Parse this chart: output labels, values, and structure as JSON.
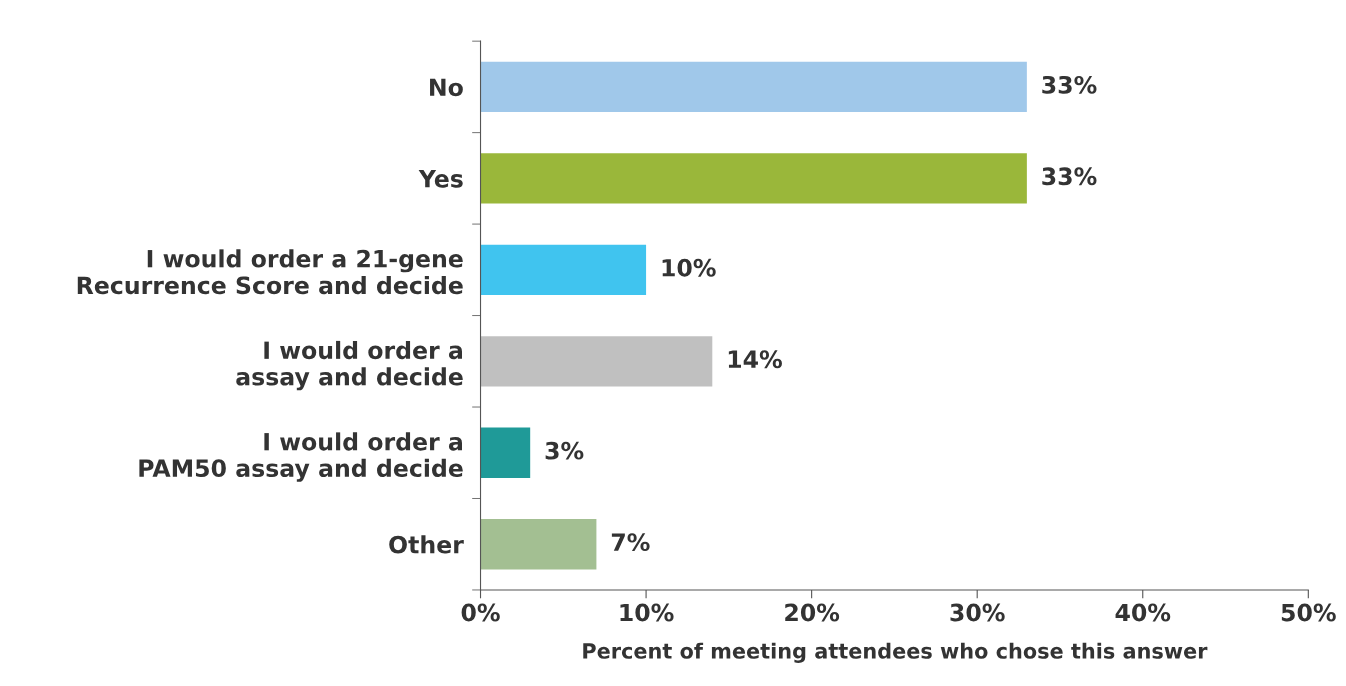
{
  "chart_data": {
    "type": "bar",
    "orientation": "horizontal",
    "xlabel": "Percent of meeting attendees who chose this answer",
    "categories": [
      "No",
      "Yes",
      "I would order a 21-gene\nRecurrence Score and decide",
      "I would order a\nassay and decide",
      "I would order a\nPAM50 assay and decide",
      "Other"
    ],
    "values": [
      33,
      33,
      10,
      14,
      3,
      7
    ],
    "colors": [
      "#a0c8ea",
      "#9ab73a",
      "#40c4ef",
      "#c0c0c0",
      "#1f9a98",
      "#a3bf92"
    ],
    "value_labels": [
      "33%",
      "33%",
      "10%",
      "14%",
      "3%",
      "7%"
    ],
    "xlim": [
      0,
      50
    ],
    "xticks": [
      {
        "value": 0,
        "label": "0%"
      },
      {
        "value": 10,
        "label": "10%"
      },
      {
        "value": 20,
        "label": "20%"
      },
      {
        "value": 30,
        "label": "30%"
      },
      {
        "value": 40,
        "label": "40%"
      },
      {
        "value": 50,
        "label": "50%"
      }
    ],
    "grid": false
  }
}
